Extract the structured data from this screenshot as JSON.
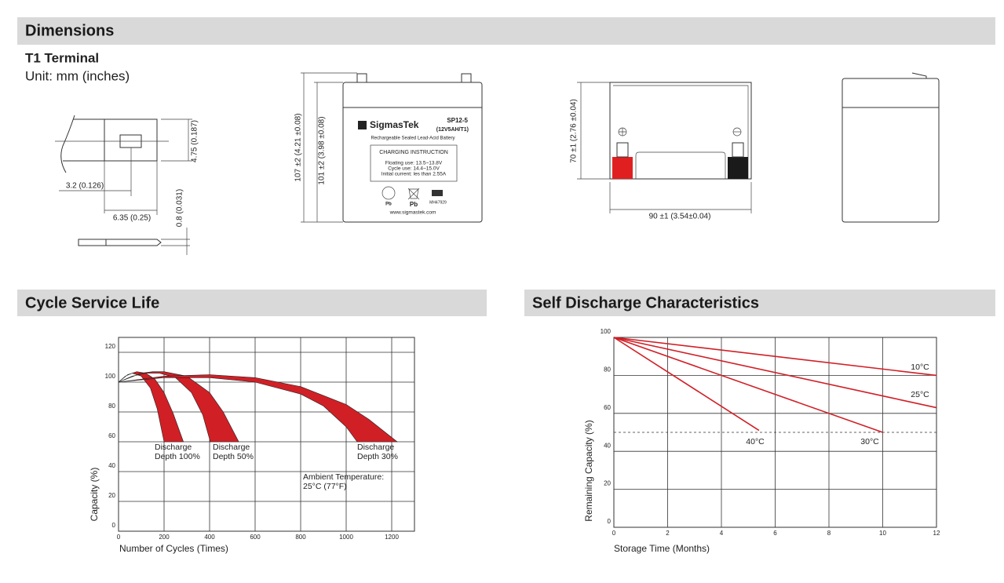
{
  "dimensions": {
    "heading": "Dimensions",
    "terminal_title": "T1 Terminal",
    "unit": "Unit: mm (inches)",
    "terminal_labels": [
      "4.75 (0.187)",
      "3.2 (0.126)",
      "6.35 (0.25)",
      "0.8 (0.031)"
    ],
    "front_labels": [
      "107 ±2 (4.21 ±0.08)",
      "101 ±2 (3.98 ±0.08)"
    ],
    "battery_label": {
      "brand": "SigmasTek",
      "model": "SP12-5",
      "rating": "(12V5AH/T1)",
      "description": "Rechargeable Sealed Lead-Acid Battery",
      "instruction_title": "CHARGING INSTRUCTION",
      "instructions": [
        "Floating use: 13.5~13.8V",
        "Cycle use: 14.4~15.0V",
        "Initial current: les than 2.55A"
      ],
      "recycle_mark": "Pb",
      "bin_mark": "Pb",
      "cert": "MH47929",
      "website": "www.sigmastek.com"
    },
    "top_labels": [
      "70 ±1 (2.76 ±0.04)",
      "90 ±1 (3.54±0.04)"
    ]
  },
  "chart_data": [
    {
      "type": "band",
      "title": "Cycle Service Life",
      "x_label": "Number of Cycles (Times)",
      "y_label": "Capacity (%)",
      "xlim": [
        0,
        1300
      ],
      "xticks": [
        0,
        200,
        400,
        600,
        800,
        1000,
        1200
      ],
      "ylim": [
        0,
        130
      ],
      "yticks": [
        0,
        20,
        40,
        60,
        80,
        100,
        120
      ],
      "grid": true,
      "series": [
        {
          "name": "Discharge Depth 100%",
          "color": "#d11f26",
          "upper": {
            "x": [
              0,
              40,
              80,
              120,
              160,
              200,
              240,
              285
            ],
            "values": [
              100,
              105,
              107,
              106,
              102,
              93,
              79,
              60
            ]
          },
          "lower": {
            "x": [
              0,
              30,
              60,
              100,
              140,
              170,
              200
            ],
            "values": [
              100,
              104,
              106,
              104,
              96,
              82,
              60
            ]
          }
        },
        {
          "name": "Discharge Depth 50%",
          "color": "#d11f26",
          "upper": {
            "x": [
              0,
              100,
              150,
              200,
              300,
              400,
              460,
              528
            ],
            "values": [
              100,
              106,
              107,
              107,
              104,
              93,
              80,
              60
            ]
          },
          "lower": {
            "x": [
              0,
              60,
              120,
              180,
              250,
              320,
              370,
              403
            ],
            "values": [
              100,
              104,
              106,
              106,
              103,
              93,
              78,
              60
            ]
          }
        },
        {
          "name": "Discharge Depth 30%",
          "color": "#d11f26",
          "upper": {
            "x": [
              0,
              200,
              400,
              600,
              800,
              1000,
              1100,
              1224
            ],
            "values": [
              100,
              104,
              105,
              103,
              97,
              85,
              75,
              60
            ]
          },
          "lower": {
            "x": [
              0,
              200,
              400,
              600,
              800,
              900,
              1000,
              1048
            ],
            "values": [
              100,
              103,
              103,
              100,
              92,
              84,
              70,
              60
            ]
          }
        }
      ],
      "annotations": [
        "Ambient Temperature: 25°C (77°F)"
      ]
    },
    {
      "type": "line",
      "title": "Self Discharge Characteristics",
      "x_label": "Storage Time (Months)",
      "y_label": "Remaining Capacity (%)",
      "xlim": [
        0,
        12
      ],
      "xticks": [
        0,
        2,
        4,
        6,
        8,
        10,
        12
      ],
      "ylim": [
        0,
        100
      ],
      "yticks": [
        0,
        20,
        40,
        60,
        80,
        100
      ],
      "grid": true,
      "reference_line": 50,
      "series": [
        {
          "name": "10°C",
          "color": "#d11f26",
          "x": [
            0,
            12
          ],
          "values": [
            100,
            80
          ]
        },
        {
          "name": "25°C",
          "color": "#d11f26",
          "x": [
            0,
            12
          ],
          "values": [
            100,
            63
          ]
        },
        {
          "name": "30°C",
          "color": "#d11f26",
          "x": [
            0,
            10
          ],
          "values": [
            100,
            50
          ]
        },
        {
          "name": "40°C",
          "color": "#d11f26",
          "x": [
            0,
            5.4
          ],
          "values": [
            100,
            51
          ]
        }
      ]
    }
  ]
}
